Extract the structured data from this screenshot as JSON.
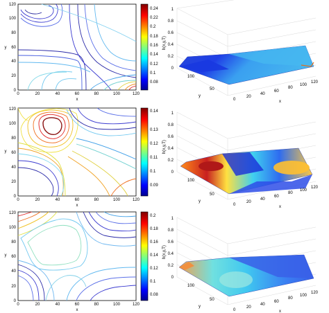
{
  "chart_data": [
    {
      "type": "contour",
      "xlabel": "x",
      "ylabel": "y",
      "xticks": [
        0,
        20,
        40,
        60,
        80,
        100,
        120
      ],
      "yticks": [
        0,
        20,
        40,
        60,
        80,
        100,
        120
      ],
      "xlim": [
        0,
        120
      ],
      "ylim": [
        0,
        120
      ],
      "colorbar": {
        "ticks": [
          "0.24",
          "0.22",
          "0.2",
          "0.18",
          "0.16",
          "0.14",
          "0.12",
          "0.1",
          "0.08"
        ],
        "range": [
          0.07,
          0.26
        ]
      }
    },
    {
      "type": "surface",
      "zlabel": "h(x,y,T)",
      "xlabel": "x",
      "ylabel": "y",
      "zticks": [
        "0",
        "0.2",
        "0.4",
        "0.6",
        "0.8",
        "1"
      ],
      "xticks": [
        "0",
        "20",
        "40",
        "60",
        "80",
        "100",
        "120"
      ],
      "yticks": [
        "50",
        "100"
      ]
    },
    {
      "type": "contour",
      "xlabel": "x",
      "ylabel": "y",
      "xticks": [
        0,
        20,
        40,
        60,
        80,
        100,
        120
      ],
      "yticks": [
        0,
        20,
        40,
        60,
        80,
        100,
        120
      ],
      "xlim": [
        0,
        120
      ],
      "ylim": [
        0,
        120
      ],
      "colorbar": {
        "ticks": [
          "0.14",
          "0.13",
          "0.12",
          "0.11",
          "0.1",
          "0.09"
        ],
        "range": [
          0.085,
          0.148
        ]
      }
    },
    {
      "type": "surface",
      "zlabel": "h(x,y,T)",
      "xlabel": "x",
      "ylabel": "y",
      "zticks": [
        "0",
        "0.2",
        "0.4",
        "0.6",
        "0.8",
        "1"
      ],
      "xticks": [
        "0",
        "20",
        "40",
        "60",
        "80",
        "100",
        "120"
      ],
      "yticks": [
        "50",
        "100"
      ]
    },
    {
      "type": "contour",
      "xlabel": "x",
      "ylabel": "y",
      "xticks": [
        0,
        20,
        40,
        60,
        80,
        100,
        120
      ],
      "yticks": [
        0,
        20,
        40,
        60,
        80,
        100,
        120
      ],
      "xlim": [
        0,
        120
      ],
      "ylim": [
        0,
        120
      ],
      "colorbar": {
        "ticks": [
          "0.2",
          "0.18",
          "0.16",
          "0.14",
          "0.12",
          "0.1",
          "0.08"
        ],
        "range": [
          0.075,
          0.21
        ]
      }
    },
    {
      "type": "surface",
      "zlabel": "h(x,y,T)",
      "xlabel": "x",
      "ylabel": "y",
      "zticks": [
        "0",
        "0.2",
        "0.4",
        "0.6",
        "0.8",
        "1"
      ],
      "xticks": [
        "0",
        "20",
        "40",
        "60",
        "80",
        "100",
        "120"
      ],
      "yticks": [
        "50",
        "100"
      ]
    }
  ]
}
